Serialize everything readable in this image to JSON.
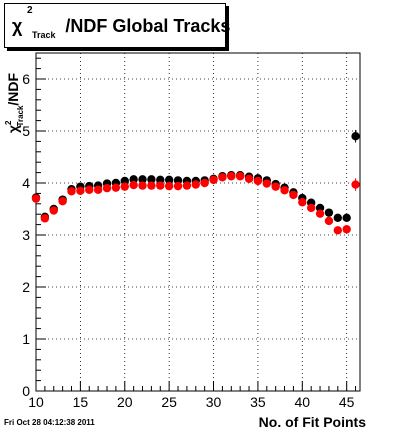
{
  "chart_data": {
    "type": "scatter",
    "title": "χ²_Track/NDF  Global Tracks",
    "title_parts": {
      "chi": "χ",
      "sup": "2",
      "sub": "Track",
      "rest": "/NDF  Global Tracks"
    },
    "ylabel_parts": {
      "chi": "χ",
      "sup": "2",
      "sub": "Track",
      "rest": "/NDF"
    },
    "xlabel": "No. of Fit Points",
    "xlim": [
      10,
      46.5
    ],
    "ylim": [
      0,
      6.5
    ],
    "xticks": [
      "10",
      "15",
      "20",
      "25",
      "30",
      "35",
      "40",
      "45"
    ],
    "yticks": [
      "0",
      "1",
      "2",
      "3",
      "4",
      "5",
      "6"
    ],
    "grid": true,
    "series": [
      {
        "color": "#000000",
        "points": [
          [
            10,
            3.72
          ],
          [
            11,
            3.35
          ],
          [
            12,
            3.5
          ],
          [
            13,
            3.68
          ],
          [
            14,
            3.88
          ],
          [
            15,
            3.93
          ],
          [
            16,
            3.94
          ],
          [
            17,
            3.95
          ],
          [
            18,
            3.99
          ],
          [
            19,
            4.0
          ],
          [
            20,
            4.04
          ],
          [
            21,
            4.07
          ],
          [
            22,
            4.07
          ],
          [
            23,
            4.07
          ],
          [
            24,
            4.06
          ],
          [
            25,
            4.06
          ],
          [
            26,
            4.05
          ],
          [
            27,
            4.04
          ],
          [
            28,
            4.04
          ],
          [
            29,
            4.05
          ],
          [
            30,
            4.08
          ],
          [
            31,
            4.13
          ],
          [
            32,
            4.15
          ],
          [
            33,
            4.15
          ],
          [
            34,
            4.12
          ],
          [
            35,
            4.09
          ],
          [
            36,
            4.05
          ],
          [
            37,
            3.98
          ],
          [
            38,
            3.91
          ],
          [
            39,
            3.82
          ],
          [
            40,
            3.71
          ],
          [
            41,
            3.62
          ],
          [
            42,
            3.52
          ],
          [
            43,
            3.43
          ],
          [
            44,
            3.33
          ],
          [
            45,
            3.33
          ],
          [
            46,
            4.9
          ]
        ]
      },
      {
        "color": "#ff0000",
        "points": [
          [
            10,
            3.7
          ],
          [
            11,
            3.32
          ],
          [
            12,
            3.47
          ],
          [
            13,
            3.65
          ],
          [
            14,
            3.84
          ],
          [
            15,
            3.85
          ],
          [
            16,
            3.87
          ],
          [
            17,
            3.87
          ],
          [
            18,
            3.9
          ],
          [
            19,
            3.91
          ],
          [
            20,
            3.93
          ],
          [
            21,
            3.96
          ],
          [
            22,
            3.95
          ],
          [
            23,
            3.95
          ],
          [
            24,
            3.95
          ],
          [
            25,
            3.94
          ],
          [
            26,
            3.94
          ],
          [
            27,
            3.95
          ],
          [
            28,
            3.97
          ],
          [
            29,
            4.0
          ],
          [
            30,
            4.06
          ],
          [
            31,
            4.11
          ],
          [
            32,
            4.13
          ],
          [
            33,
            4.13
          ],
          [
            34,
            4.08
          ],
          [
            35,
            4.04
          ],
          [
            36,
            3.99
          ],
          [
            37,
            3.93
          ],
          [
            38,
            3.86
          ],
          [
            39,
            3.77
          ],
          [
            40,
            3.63
          ],
          [
            41,
            3.52
          ],
          [
            42,
            3.41
          ],
          [
            43,
            3.27
          ],
          [
            44,
            3.09
          ],
          [
            45,
            3.11
          ],
          [
            46,
            3.97
          ]
        ]
      }
    ]
  },
  "footer": {
    "timestamp": "Fri Oct 28 04:12:38 2011"
  }
}
